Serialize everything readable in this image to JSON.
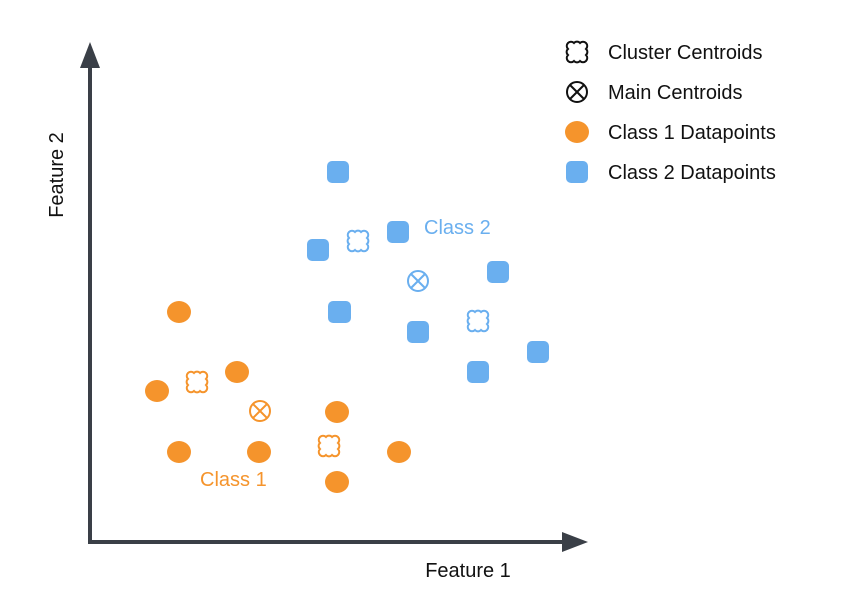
{
  "colors": {
    "axis": "#3a3f47",
    "class1": "#f5942c",
    "class2": "#6aafef",
    "legend_icon": "#111111",
    "background": "#ffffff"
  },
  "axes": {
    "x_label": "Feature 1",
    "y_label": "Feature 2"
  },
  "legend": [
    {
      "icon": "cluster-centroid-icon",
      "label": "Cluster Centroids"
    },
    {
      "icon": "main-centroid-icon",
      "label": "Main Centroids"
    },
    {
      "icon": "class1-datapoint-icon",
      "label": "Class 1 Datapoints"
    },
    {
      "icon": "class2-datapoint-icon",
      "label": "Class 2 Datapoints"
    }
  ],
  "class_labels": {
    "class1": "Class 1",
    "class2": "Class 2"
  }
}
